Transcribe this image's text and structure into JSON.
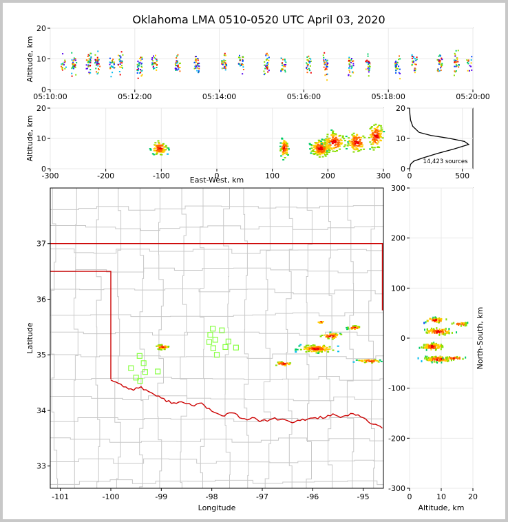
{
  "title": "Oklahoma LMA 0510-0520 UTC April 03, 2020",
  "colors": {
    "boundary": "#cc0000",
    "county": "#c8c8c8",
    "station": "#88ff44",
    "grid": "#e8e8e8"
  },
  "chart_data": [
    {
      "id": "time-height",
      "type": "scatter",
      "ylabel": "Altitude, km",
      "xlabel": "",
      "ylim": [
        0,
        20
      ],
      "yticks": [
        "0",
        "10",
        "20"
      ],
      "xticks": [
        "05:10:00",
        "05:12:00",
        "05:14:00",
        "05:16:00",
        "05:18:00",
        "05:20:00"
      ],
      "xrange_minutes": [
        0,
        10
      ],
      "clusters": [
        {
          "x": 0.3,
          "y": 9,
          "n": 15
        },
        {
          "x": 0.55,
          "y": 8,
          "n": 30
        },
        {
          "x": 0.9,
          "y": 9,
          "n": 35
        },
        {
          "x": 1.1,
          "y": 8,
          "n": 30
        },
        {
          "x": 1.45,
          "y": 8,
          "n": 25
        },
        {
          "x": 1.65,
          "y": 9,
          "n": 25
        },
        {
          "x": 2.1,
          "y": 8,
          "n": 35
        },
        {
          "x": 2.45,
          "y": 9,
          "n": 30
        },
        {
          "x": 3.0,
          "y": 8,
          "n": 30
        },
        {
          "x": 3.45,
          "y": 8,
          "n": 30
        },
        {
          "x": 4.1,
          "y": 9,
          "n": 30
        },
        {
          "x": 4.5,
          "y": 9,
          "n": 25
        },
        {
          "x": 5.1,
          "y": 8,
          "n": 30
        },
        {
          "x": 5.5,
          "y": 8,
          "n": 25
        },
        {
          "x": 6.1,
          "y": 8,
          "n": 25
        },
        {
          "x": 6.5,
          "y": 8,
          "n": 30
        },
        {
          "x": 7.1,
          "y": 8,
          "n": 30
        },
        {
          "x": 7.5,
          "y": 8,
          "n": 25
        },
        {
          "x": 8.2,
          "y": 8,
          "n": 30
        },
        {
          "x": 8.6,
          "y": 9,
          "n": 25
        },
        {
          "x": 9.2,
          "y": 9,
          "n": 30
        },
        {
          "x": 9.6,
          "y": 9,
          "n": 30
        },
        {
          "x": 9.9,
          "y": 9,
          "n": 15
        }
      ]
    },
    {
      "id": "east-west",
      "type": "heatmap",
      "xlabel": "East-West, km",
      "ylabel": "Altitude, km",
      "xlim": [
        -300,
        300
      ],
      "ylim": [
        0,
        20
      ],
      "xticks": [
        "-300",
        "-200",
        "-100",
        "0",
        "100",
        "200",
        "300"
      ],
      "yticks": [
        "0",
        "10",
        "20"
      ],
      "clusters": [
        {
          "x": -105,
          "y": 7,
          "sx": 12,
          "sy": 2,
          "n": 90
        },
        {
          "x": 120,
          "y": 7,
          "sx": 6,
          "sy": 3,
          "n": 80
        },
        {
          "x": 185,
          "y": 7,
          "sx": 15,
          "sy": 2.5,
          "n": 160
        },
        {
          "x": 210,
          "y": 9,
          "sx": 18,
          "sy": 3,
          "n": 110
        },
        {
          "x": 250,
          "y": 9,
          "sx": 15,
          "sy": 3,
          "n": 90
        },
        {
          "x": 285,
          "y": 11,
          "sx": 12,
          "sy": 4,
          "n": 100
        }
      ]
    },
    {
      "id": "altitude-histogram",
      "type": "line",
      "xlim": [
        0,
        600
      ],
      "ylim": [
        0,
        20
      ],
      "xticks": [
        "0",
        "500"
      ],
      "yticks": [
        "0",
        "10",
        "20"
      ],
      "annotation": "14,423 sources",
      "x": [
        0,
        10,
        40,
        120,
        260,
        420,
        560,
        520,
        380,
        200,
        90,
        30,
        10,
        3,
        0
      ],
      "y": [
        0,
        1.5,
        2.5,
        3.5,
        5,
        6.5,
        8,
        9,
        10,
        11,
        12,
        14,
        16,
        18,
        20
      ]
    },
    {
      "id": "plan-view",
      "type": "scatter",
      "xlabel": "Longitude",
      "ylabel": "Latitude",
      "xlim": [
        -101.2,
        -94.6
      ],
      "ylim": [
        32.6,
        38
      ],
      "xticks": [
        "-101",
        "-100",
        "-99",
        "-98",
        "-97",
        "-96",
        "-95"
      ],
      "yticks": [
        "33",
        "34",
        "35",
        "36",
        "37"
      ],
      "clusters": [
        {
          "lon": -99.0,
          "lat": 35.15,
          "sx": 0.12,
          "sy": 0.04,
          "n": 45
        },
        {
          "lon": -96.6,
          "lat": 34.85,
          "sx": 0.15,
          "sy": 0.04,
          "n": 30
        },
        {
          "lon": -95.95,
          "lat": 35.12,
          "sx": 0.3,
          "sy": 0.06,
          "n": 110
        },
        {
          "lon": -95.65,
          "lat": 35.35,
          "sx": 0.18,
          "sy": 0.05,
          "n": 40
        },
        {
          "lon": -95.2,
          "lat": 35.5,
          "sx": 0.12,
          "sy": 0.03,
          "n": 25
        },
        {
          "lon": -95.85,
          "lat": 35.6,
          "sx": 0.06,
          "sy": 0.02,
          "n": 10
        },
        {
          "lon": -94.9,
          "lat": 34.9,
          "sx": 0.2,
          "sy": 0.03,
          "n": 35
        }
      ],
      "stations": [
        {
          "lon": -97.98,
          "lat": 35.47
        },
        {
          "lon": -97.8,
          "lat": 35.44
        },
        {
          "lon": -98.03,
          "lat": 35.36
        },
        {
          "lon": -97.93,
          "lat": 35.27
        },
        {
          "lon": -98.05,
          "lat": 35.23
        },
        {
          "lon": -97.67,
          "lat": 35.24
        },
        {
          "lon": -97.73,
          "lat": 35.14
        },
        {
          "lon": -97.97,
          "lat": 35.12
        },
        {
          "lon": -97.52,
          "lat": 35.13
        },
        {
          "lon": -97.9,
          "lat": 35.0
        },
        {
          "lon": -99.43,
          "lat": 34.98
        },
        {
          "lon": -99.35,
          "lat": 34.85
        },
        {
          "lon": -99.6,
          "lat": 34.76
        },
        {
          "lon": -99.32,
          "lat": 34.69
        },
        {
          "lon": -99.07,
          "lat": 34.7
        },
        {
          "lon": -99.5,
          "lat": 34.59
        },
        {
          "lon": -99.42,
          "lat": 34.53
        }
      ],
      "boundary": [
        [
          -101.2,
          37.0
        ],
        [
          -94.62,
          37.0
        ],
        [
          -94.62,
          35.8
        ]
      ],
      "panhandle": [
        [
          -101.2,
          36.5
        ],
        [
          -100.0,
          36.5
        ],
        [
          -100.0,
          34.56
        ]
      ],
      "red_river": [
        [
          -100.0,
          34.56
        ],
        [
          -99.8,
          34.46
        ],
        [
          -99.6,
          34.38
        ],
        [
          -99.4,
          34.41
        ],
        [
          -99.2,
          34.32
        ],
        [
          -99.0,
          34.21
        ],
        [
          -98.8,
          34.15
        ],
        [
          -98.6,
          34.14
        ],
        [
          -98.4,
          34.09
        ],
        [
          -98.2,
          34.13
        ],
        [
          -98.0,
          33.98
        ],
        [
          -97.8,
          33.9
        ],
        [
          -97.6,
          33.97
        ],
        [
          -97.4,
          33.84
        ],
        [
          -97.2,
          33.86
        ],
        [
          -97.0,
          33.8
        ],
        [
          -96.8,
          33.85
        ],
        [
          -96.6,
          33.83
        ],
        [
          -96.4,
          33.78
        ],
        [
          -96.2,
          33.83
        ],
        [
          -96.0,
          33.86
        ],
        [
          -95.8,
          33.88
        ],
        [
          -95.6,
          33.92
        ],
        [
          -95.4,
          33.87
        ],
        [
          -95.2,
          33.94
        ],
        [
          -95.0,
          33.87
        ],
        [
          -94.8,
          33.75
        ],
        [
          -94.62,
          33.68
        ]
      ]
    },
    {
      "id": "north-south",
      "type": "heatmap",
      "xlabel": "Altitude, km",
      "ylabel": "North-South, km",
      "xlim": [
        0,
        20
      ],
      "ylim": [
        -300,
        300
      ],
      "xticks": [
        "0",
        "10",
        "20"
      ],
      "yticks": [
        "-300",
        "-200",
        "-100",
        "0",
        "100",
        "200",
        "300"
      ],
      "clusters": [
        {
          "x": 8,
          "y": 38,
          "sx": 3,
          "sy": 4,
          "n": 50
        },
        {
          "x": 9,
          "y": 15,
          "sx": 4,
          "sy": 6,
          "n": 70
        },
        {
          "x": 7,
          "y": -15,
          "sx": 3,
          "sy": 6,
          "n": 110
        },
        {
          "x": 9,
          "y": -40,
          "sx": 4,
          "sy": 5,
          "n": 90
        },
        {
          "x": 14,
          "y": -38,
          "sx": 3,
          "sy": 2,
          "n": 25
        },
        {
          "x": 16,
          "y": 30,
          "sx": 2.5,
          "sy": 3,
          "n": 25
        }
      ]
    }
  ]
}
